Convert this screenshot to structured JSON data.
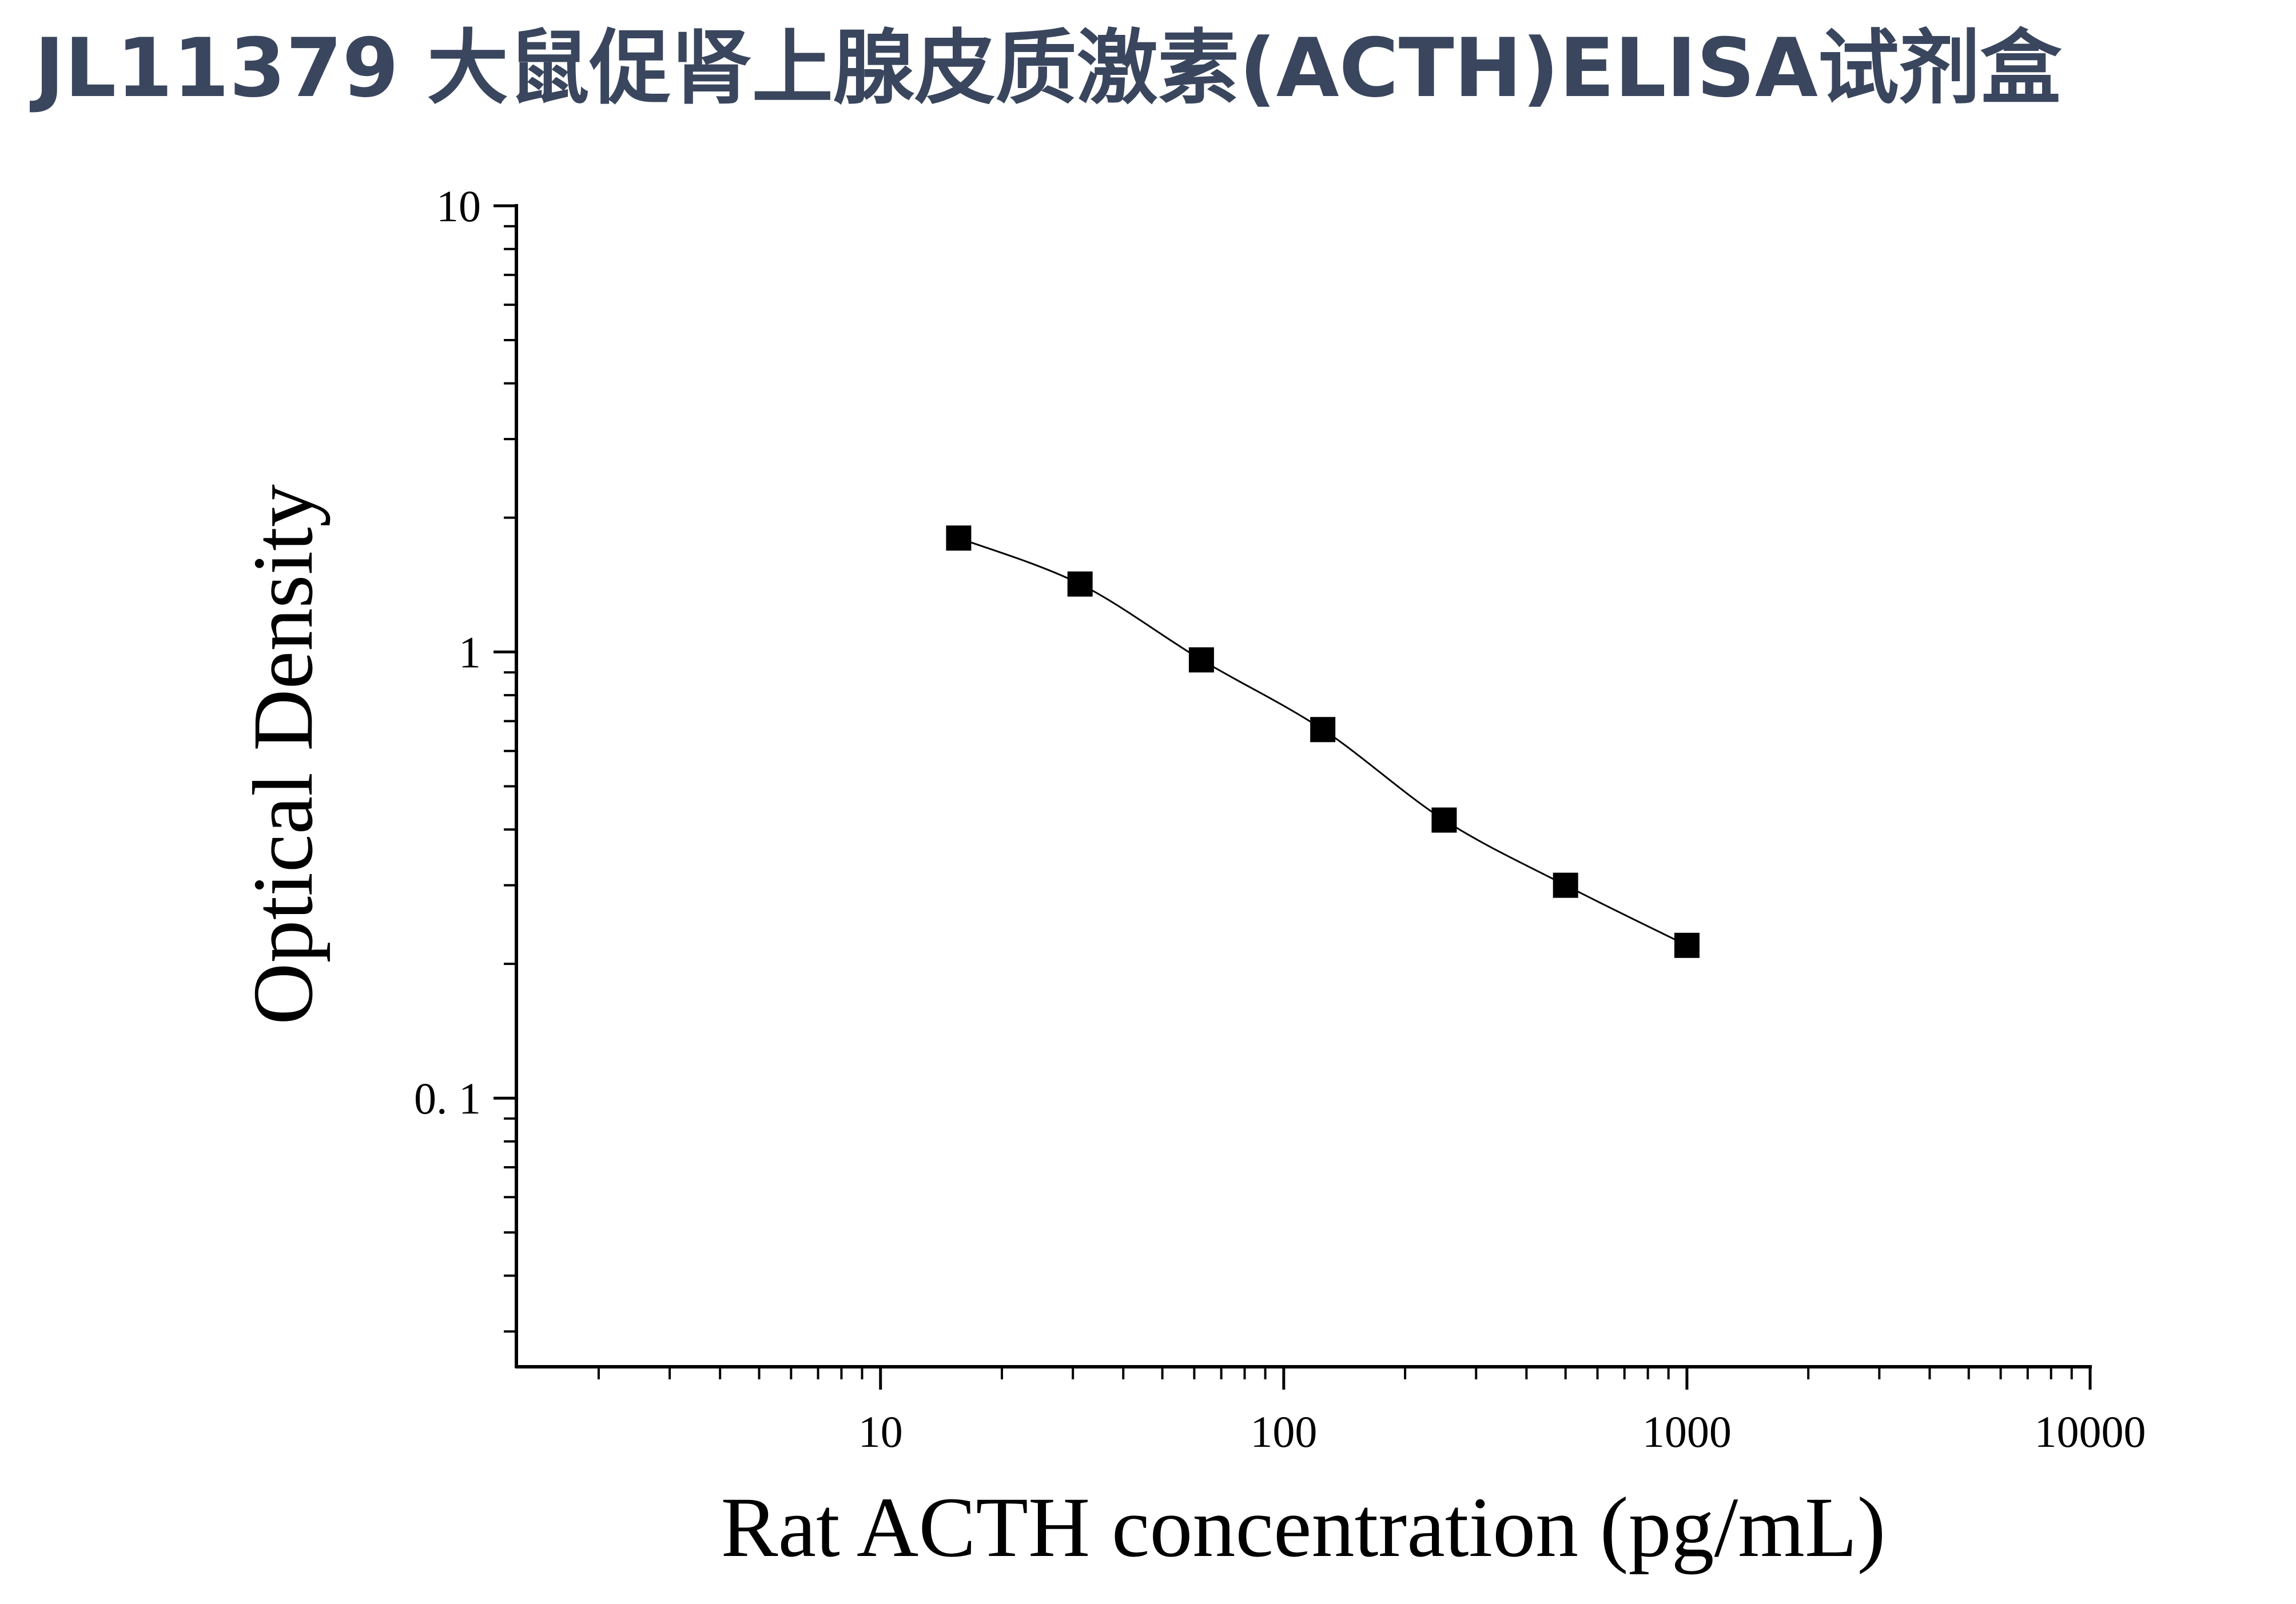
{
  "title": "JL11379 大鼠促肾上腺皮质激素(ACTH)ELISA试剂盒",
  "colors": {
    "title": "#3a465e",
    "axis": "#000000",
    "marker": "#000000",
    "curve": "#000000"
  },
  "chart_data": {
    "type": "scatter",
    "xlabel": "Rat ACTH concentration (pg/mL)",
    "ylabel": "Optical Density",
    "x_scale": "log",
    "y_scale": "log",
    "xlim": [
      1.25,
      10000
    ],
    "ylim": [
      0.025,
      10
    ],
    "x_ticks": [
      {
        "value": 10,
        "label": "10"
      },
      {
        "value": 100,
        "label": "100"
      },
      {
        "value": 1000,
        "label": "1000"
      },
      {
        "value": 10000,
        "label": "10000"
      }
    ],
    "y_ticks": [
      {
        "value": 0.1,
        "label": "0. 1"
      },
      {
        "value": 1,
        "label": "1"
      },
      {
        "value": 10,
        "label": "10"
      }
    ],
    "grid": false,
    "legend": "none",
    "fit_curve": "smooth",
    "series": [
      {
        "marker": "square",
        "x": [
          15.625,
          31.25,
          62.5,
          125,
          250,
          500,
          1000
        ],
        "y": [
          1.8,
          1.42,
          0.96,
          0.67,
          0.42,
          0.3,
          0.22
        ]
      }
    ]
  }
}
